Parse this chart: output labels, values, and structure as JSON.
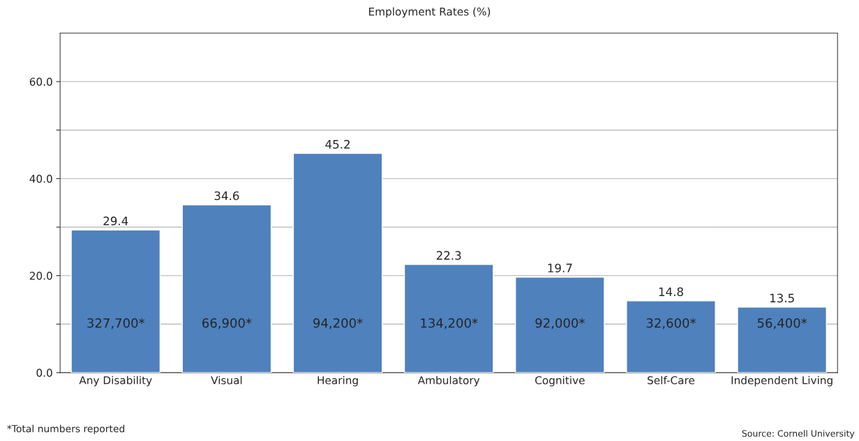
{
  "chart_data": {
    "type": "bar",
    "title": "Employment Rates (%)",
    "categories": [
      "Any Disability",
      "Visual",
      "Hearing",
      "Ambulatory",
      "Cognitive",
      "Self-Care",
      "Independent Living"
    ],
    "values": [
      29.4,
      34.6,
      45.2,
      22.3,
      19.7,
      14.8,
      13.5
    ],
    "color": "#4f81bd",
    "data_labels": true,
    "ylim": [
      0,
      70
    ],
    "yticks": [
      {
        "value": 0,
        "label": "0.0"
      },
      {
        "value": 10,
        "label": null
      },
      {
        "value": 20,
        "label": "20.0"
      },
      {
        "value": 30,
        "label": null
      },
      {
        "value": 40,
        "label": "40.0"
      },
      {
        "value": 50,
        "label": null
      },
      {
        "value": 60,
        "label": "60.0"
      }
    ],
    "grid": "y",
    "annotations": [
      "327,700*",
      "66,900*",
      "94,200*",
      "134,200*",
      "92,000*",
      "32,600*",
      "56,400*",
      "*Total numbers reported",
      "Source: Cornell University"
    ]
  }
}
